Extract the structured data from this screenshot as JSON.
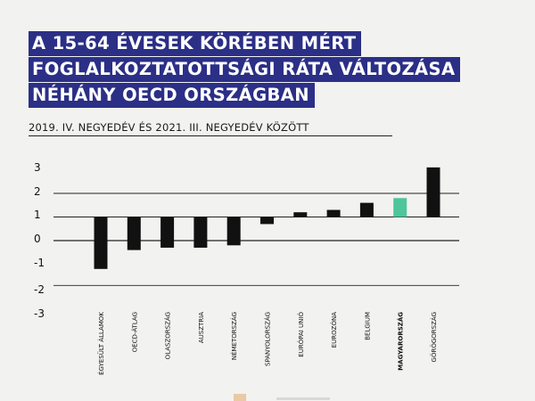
{
  "title": {
    "line1": "A 15-64 ÉVESEK KÖRÉBEN MÉRT",
    "line2": "FOGLALKOZTATOTTSÁGI RÁTA VÁLTOZÁSA",
    "line3": "NÉHÁNY OECD ORSZÁGBAN"
  },
  "subtitle": "2019. IV. NEGYEDÉV ÉS 2021. III. NEGYEDÉV KÖZÖTT",
  "colors": {
    "bar": "#111111",
    "highlight": "#4fc59a",
    "title_bg": "#2b2f86",
    "grid": "#222222"
  },
  "chart_data": {
    "type": "bar",
    "title": "A 15-64 ÉVESEK KÖRÉBEN MÉRT FOGLALKOZTATOTTSÁGI RÁTA VÁLTOZÁSA NÉHÁNY OECD ORSZÁGBAN",
    "subtitle": "2019. IV. NEGYEDÉV ÉS 2021. III. NEGYEDÉV KÖZÖTT",
    "categories": [
      "ÉGYESÜLT ÁLLAMOK",
      "OECD-ÁTLAG",
      "OLASZORSZÁG",
      "AUSZTRIA",
      "NÉMETORSZÁG",
      "SPANYOLORSZÁG",
      "EURÓPAI UNIÓ",
      "EUROZÓNA",
      "BELGIUM",
      "MAGYARORSZÁG",
      "GÖRÖGORSZÁG"
    ],
    "values": [
      -2.2,
      -1.4,
      -1.3,
      -1.3,
      -1.2,
      -0.3,
      0.2,
      0.3,
      0.6,
      0.8,
      2.1
    ],
    "highlight_category": "MAGYARORSZÁG",
    "baseline": 1,
    "y_tick_labels": [
      "3",
      "2",
      "1",
      "0",
      "-1",
      "-2",
      "-3"
    ],
    "ylim": [
      -3,
      3
    ],
    "grid": true,
    "xlabel": "",
    "ylabel": ""
  }
}
